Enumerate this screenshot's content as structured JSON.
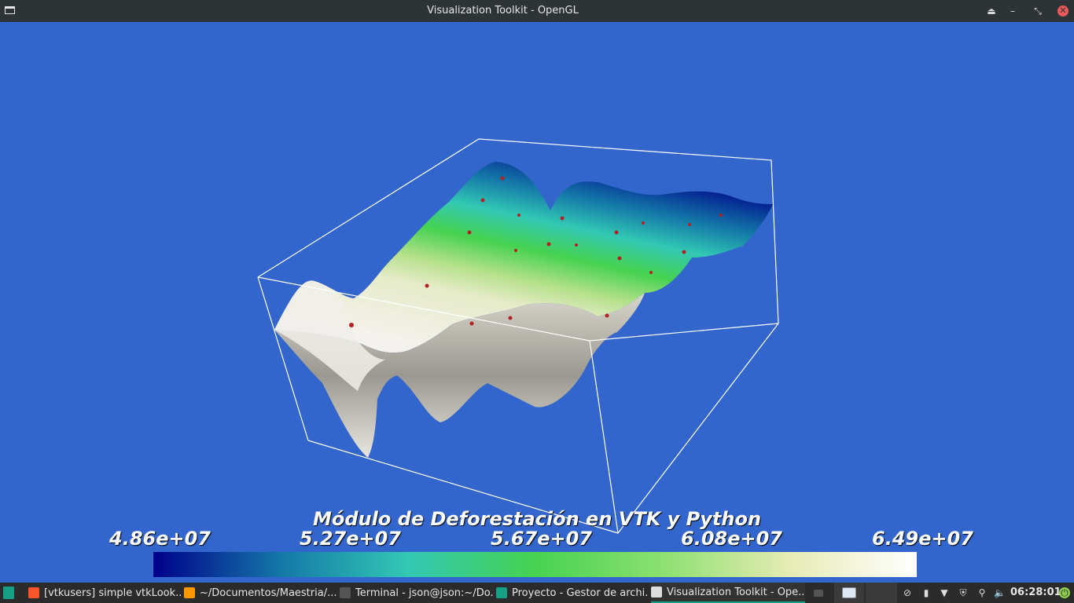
{
  "window": {
    "title": "Visualization Toolkit - OpenGL",
    "buttons": {
      "keep_above": "⏏",
      "minimize": "–",
      "maximize": "⤡",
      "close": "✕"
    }
  },
  "scene": {
    "title": "Módulo de Deforestación en VTK y Python",
    "background_color": "#3366cc",
    "scalar_bar": {
      "ticks": [
        "4.86e+07",
        "5.27e+07",
        "5.67e+07",
        "6.08e+07",
        "6.49e+07"
      ],
      "colors": [
        "#00008b",
        "#1478a8",
        "#32c8b4",
        "#46d250",
        "#8ce070",
        "#e6ebb4",
        "#ffffff"
      ]
    }
  },
  "taskbar": {
    "tasks": [
      {
        "label": "[vtkusers] simple vtkLook...",
        "icon": "brave-browser-icon",
        "color": "#fb542b"
      },
      {
        "label": "~/Documentos/Maestria/...",
        "icon": "sublime-text-icon",
        "color": "#ff9800"
      },
      {
        "label": "Terminal - json@json:~/Do...",
        "icon": "terminal-icon",
        "color": "#555555"
      },
      {
        "label": "Proyecto - Gestor de archi...",
        "icon": "folder-icon",
        "color": "#16a085"
      },
      {
        "label": "Visualization Toolkit - Ope...",
        "icon": "window-icon",
        "color": "#dddddd"
      }
    ],
    "clock": "06:28:01"
  }
}
